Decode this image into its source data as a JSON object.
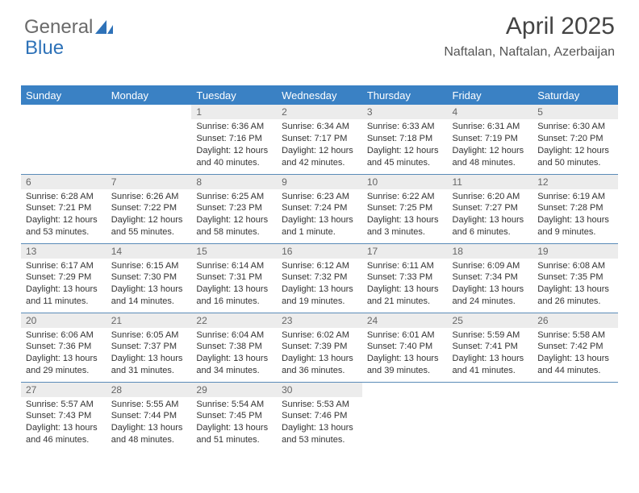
{
  "brand": {
    "part1": "General",
    "part2": "Blue"
  },
  "title": "April 2025",
  "subtitle": "Naftalan, Naftalan, Azerbaijan",
  "colors": {
    "header_bg": "#3a81c4",
    "header_text": "#ffffff",
    "daynum_bg": "#ececec",
    "row_divider": "#5a8bb8",
    "brand_gray": "#6a6a6a",
    "brand_blue": "#2e72b8"
  },
  "day_labels": [
    "Sunday",
    "Monday",
    "Tuesday",
    "Wednesday",
    "Thursday",
    "Friday",
    "Saturday"
  ],
  "weeks": [
    [
      {
        "empty": true
      },
      {
        "empty": true
      },
      {
        "n": "1",
        "sr": "Sunrise: 6:36 AM",
        "ss": "Sunset: 7:16 PM",
        "d1": "Daylight: 12 hours",
        "d2": "and 40 minutes."
      },
      {
        "n": "2",
        "sr": "Sunrise: 6:34 AM",
        "ss": "Sunset: 7:17 PM",
        "d1": "Daylight: 12 hours",
        "d2": "and 42 minutes."
      },
      {
        "n": "3",
        "sr": "Sunrise: 6:33 AM",
        "ss": "Sunset: 7:18 PM",
        "d1": "Daylight: 12 hours",
        "d2": "and 45 minutes."
      },
      {
        "n": "4",
        "sr": "Sunrise: 6:31 AM",
        "ss": "Sunset: 7:19 PM",
        "d1": "Daylight: 12 hours",
        "d2": "and 48 minutes."
      },
      {
        "n": "5",
        "sr": "Sunrise: 6:30 AM",
        "ss": "Sunset: 7:20 PM",
        "d1": "Daylight: 12 hours",
        "d2": "and 50 minutes."
      }
    ],
    [
      {
        "n": "6",
        "sr": "Sunrise: 6:28 AM",
        "ss": "Sunset: 7:21 PM",
        "d1": "Daylight: 12 hours",
        "d2": "and 53 minutes."
      },
      {
        "n": "7",
        "sr": "Sunrise: 6:26 AM",
        "ss": "Sunset: 7:22 PM",
        "d1": "Daylight: 12 hours",
        "d2": "and 55 minutes."
      },
      {
        "n": "8",
        "sr": "Sunrise: 6:25 AM",
        "ss": "Sunset: 7:23 PM",
        "d1": "Daylight: 12 hours",
        "d2": "and 58 minutes."
      },
      {
        "n": "9",
        "sr": "Sunrise: 6:23 AM",
        "ss": "Sunset: 7:24 PM",
        "d1": "Daylight: 13 hours",
        "d2": "and 1 minute."
      },
      {
        "n": "10",
        "sr": "Sunrise: 6:22 AM",
        "ss": "Sunset: 7:25 PM",
        "d1": "Daylight: 13 hours",
        "d2": "and 3 minutes."
      },
      {
        "n": "11",
        "sr": "Sunrise: 6:20 AM",
        "ss": "Sunset: 7:27 PM",
        "d1": "Daylight: 13 hours",
        "d2": "and 6 minutes."
      },
      {
        "n": "12",
        "sr": "Sunrise: 6:19 AM",
        "ss": "Sunset: 7:28 PM",
        "d1": "Daylight: 13 hours",
        "d2": "and 9 minutes."
      }
    ],
    [
      {
        "n": "13",
        "sr": "Sunrise: 6:17 AM",
        "ss": "Sunset: 7:29 PM",
        "d1": "Daylight: 13 hours",
        "d2": "and 11 minutes."
      },
      {
        "n": "14",
        "sr": "Sunrise: 6:15 AM",
        "ss": "Sunset: 7:30 PM",
        "d1": "Daylight: 13 hours",
        "d2": "and 14 minutes."
      },
      {
        "n": "15",
        "sr": "Sunrise: 6:14 AM",
        "ss": "Sunset: 7:31 PM",
        "d1": "Daylight: 13 hours",
        "d2": "and 16 minutes."
      },
      {
        "n": "16",
        "sr": "Sunrise: 6:12 AM",
        "ss": "Sunset: 7:32 PM",
        "d1": "Daylight: 13 hours",
        "d2": "and 19 minutes."
      },
      {
        "n": "17",
        "sr": "Sunrise: 6:11 AM",
        "ss": "Sunset: 7:33 PM",
        "d1": "Daylight: 13 hours",
        "d2": "and 21 minutes."
      },
      {
        "n": "18",
        "sr": "Sunrise: 6:09 AM",
        "ss": "Sunset: 7:34 PM",
        "d1": "Daylight: 13 hours",
        "d2": "and 24 minutes."
      },
      {
        "n": "19",
        "sr": "Sunrise: 6:08 AM",
        "ss": "Sunset: 7:35 PM",
        "d1": "Daylight: 13 hours",
        "d2": "and 26 minutes."
      }
    ],
    [
      {
        "n": "20",
        "sr": "Sunrise: 6:06 AM",
        "ss": "Sunset: 7:36 PM",
        "d1": "Daylight: 13 hours",
        "d2": "and 29 minutes."
      },
      {
        "n": "21",
        "sr": "Sunrise: 6:05 AM",
        "ss": "Sunset: 7:37 PM",
        "d1": "Daylight: 13 hours",
        "d2": "and 31 minutes."
      },
      {
        "n": "22",
        "sr": "Sunrise: 6:04 AM",
        "ss": "Sunset: 7:38 PM",
        "d1": "Daylight: 13 hours",
        "d2": "and 34 minutes."
      },
      {
        "n": "23",
        "sr": "Sunrise: 6:02 AM",
        "ss": "Sunset: 7:39 PM",
        "d1": "Daylight: 13 hours",
        "d2": "and 36 minutes."
      },
      {
        "n": "24",
        "sr": "Sunrise: 6:01 AM",
        "ss": "Sunset: 7:40 PM",
        "d1": "Daylight: 13 hours",
        "d2": "and 39 minutes."
      },
      {
        "n": "25",
        "sr": "Sunrise: 5:59 AM",
        "ss": "Sunset: 7:41 PM",
        "d1": "Daylight: 13 hours",
        "d2": "and 41 minutes."
      },
      {
        "n": "26",
        "sr": "Sunrise: 5:58 AM",
        "ss": "Sunset: 7:42 PM",
        "d1": "Daylight: 13 hours",
        "d2": "and 44 minutes."
      }
    ],
    [
      {
        "n": "27",
        "sr": "Sunrise: 5:57 AM",
        "ss": "Sunset: 7:43 PM",
        "d1": "Daylight: 13 hours",
        "d2": "and 46 minutes."
      },
      {
        "n": "28",
        "sr": "Sunrise: 5:55 AM",
        "ss": "Sunset: 7:44 PM",
        "d1": "Daylight: 13 hours",
        "d2": "and 48 minutes."
      },
      {
        "n": "29",
        "sr": "Sunrise: 5:54 AM",
        "ss": "Sunset: 7:45 PM",
        "d1": "Daylight: 13 hours",
        "d2": "and 51 minutes."
      },
      {
        "n": "30",
        "sr": "Sunrise: 5:53 AM",
        "ss": "Sunset: 7:46 PM",
        "d1": "Daylight: 13 hours",
        "d2": "and 53 minutes."
      },
      {
        "empty": true
      },
      {
        "empty": true
      },
      {
        "empty": true
      }
    ]
  ]
}
